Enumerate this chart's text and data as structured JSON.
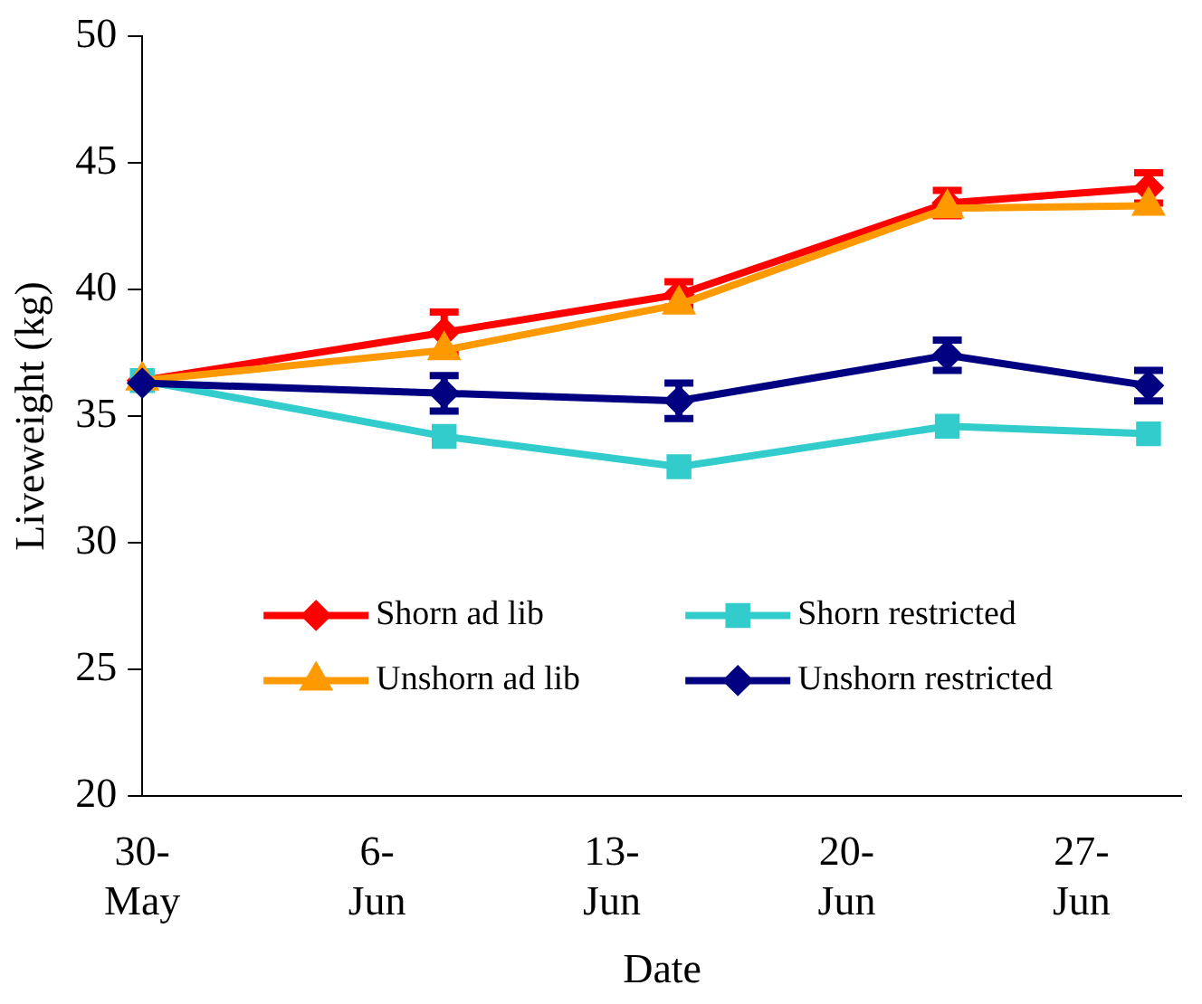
{
  "chart_data": {
    "type": "line",
    "xlabel": "Date",
    "ylabel": "Liveweight (kg)",
    "x": [
      "--05-30",
      "--06-08",
      "--06-15",
      "--06-23",
      "--06-29"
    ],
    "xlim": [
      "--05-30",
      "--06-30"
    ],
    "xticks": [
      {
        "value": "--05-30",
        "label": "30-May"
      },
      {
        "value": "--06-06",
        "label": "6-Jun"
      },
      {
        "value": "--06-13",
        "label": "13-Jun"
      },
      {
        "value": "--06-20",
        "label": "20-Jun"
      },
      {
        "value": "--06-27",
        "label": "27-Jun"
      }
    ],
    "ylim": [
      20,
      50
    ],
    "yticks": [
      20,
      25,
      30,
      35,
      40,
      45,
      50
    ],
    "grid": false,
    "legend": "bottom",
    "line_style": "solid",
    "series": [
      {
        "name": "Shorn ad lib",
        "color": "#ff0000",
        "marker": "diamond",
        "values": [
          36.4,
          38.3,
          39.8,
          43.4,
          44.0
        ],
        "errors": [
          null,
          0.8,
          0.5,
          0.5,
          0.6
        ]
      },
      {
        "name": "Shorn restricted",
        "color": "#33cccc",
        "marker": "square",
        "values": [
          36.4,
          34.2,
          33.0,
          34.6,
          34.3
        ],
        "errors": [
          null,
          null,
          null,
          null,
          null
        ]
      },
      {
        "name": "Unshorn ad lib",
        "color": "#ff9900",
        "marker": "triangle",
        "values": [
          36.4,
          37.6,
          39.4,
          43.2,
          43.3
        ],
        "errors": [
          null,
          null,
          null,
          null,
          null
        ]
      },
      {
        "name": "Unshorn restricted",
        "color": "#000080",
        "marker": "diamond",
        "values": [
          36.3,
          35.9,
          35.6,
          37.4,
          36.2
        ],
        "errors": [
          null,
          0.7,
          0.7,
          0.6,
          0.6
        ]
      }
    ]
  }
}
